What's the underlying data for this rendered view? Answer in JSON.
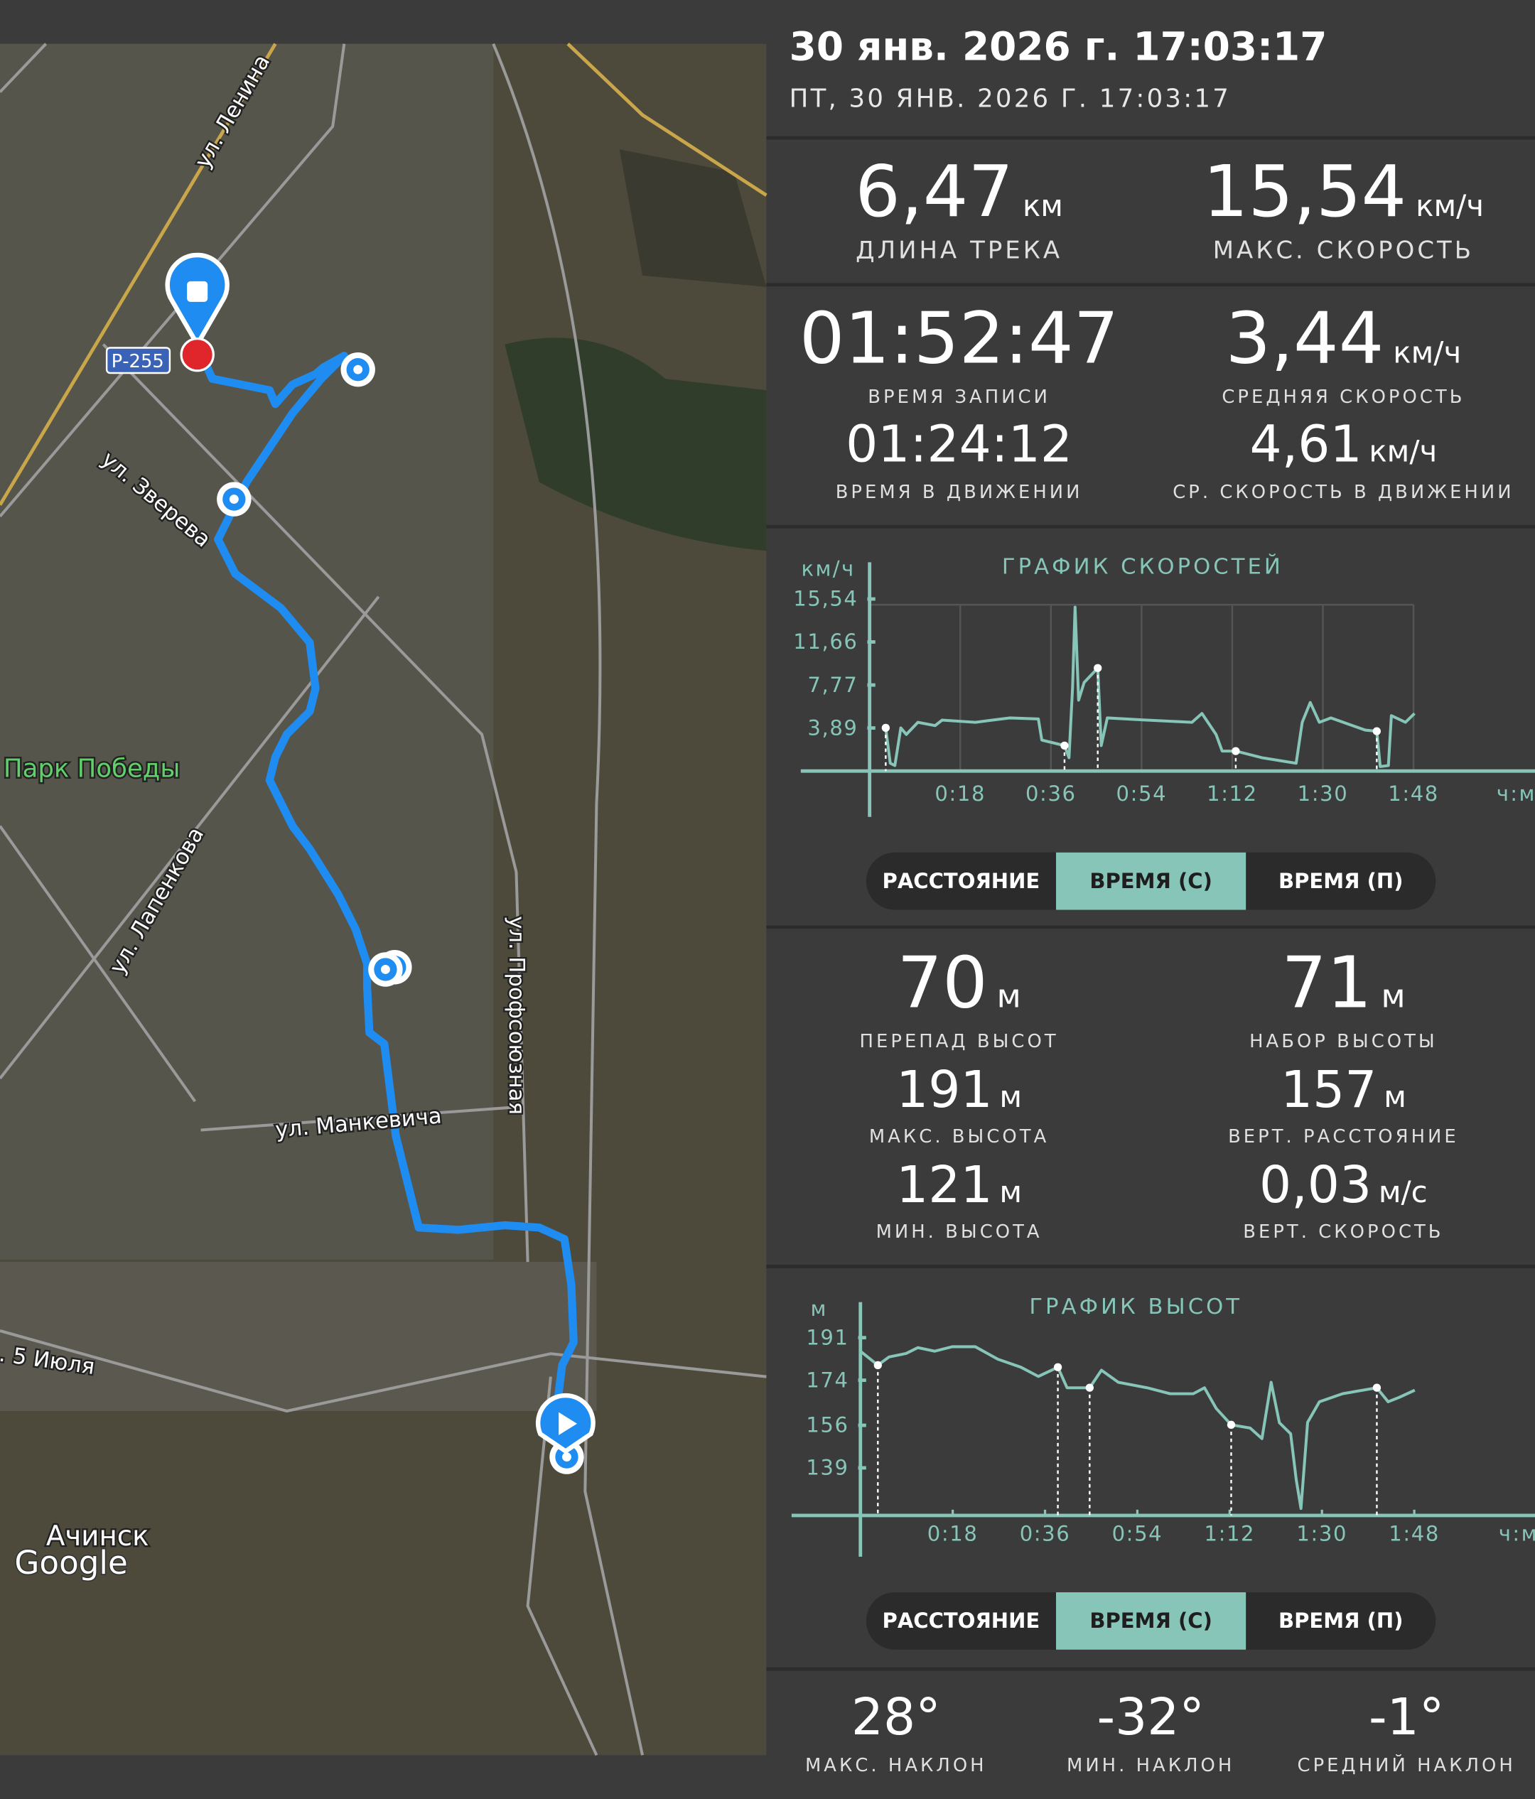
{
  "header": {
    "title": "30 янв. 2026 г. 17:03:17",
    "subtitle": "ПТ, 30 ЯНВ. 2026 Г. 17:03:17"
  },
  "map": {
    "labels": [
      "ул. Ленина",
      "Р-255",
      "ул. Зверева",
      "Парк Победы",
      "ул. Лапенкова",
      "ул. Профсоюзная",
      "ул. Манкевича",
      ". 5 Июля",
      "Ачинск",
      "Google"
    ]
  },
  "stats": {
    "track_length": {
      "value": "6,47",
      "unit": "км",
      "label": "ДЛИНА ТРЕКА"
    },
    "max_speed": {
      "value": "15,54",
      "unit": "км/ч",
      "label": "МАКС. СКОРОСТЬ"
    },
    "record_time": {
      "value": "01:52:47",
      "label": "ВРЕМЯ ЗАПИСИ"
    },
    "avg_speed": {
      "value": "3,44",
      "unit": "км/ч",
      "label": "СРЕДНЯЯ СКОРОСТЬ"
    },
    "moving_time": {
      "value": "01:24:12",
      "label": "ВРЕМЯ В ДВИЖЕНИИ"
    },
    "avg_moving_speed": {
      "value": "4,61",
      "unit": "км/ч",
      "label": "СР. СКОРОСТЬ В ДВИЖЕНИИ"
    }
  },
  "speed_chart": {
    "type": "line",
    "title": "ГРАФИК СКОРОСТЕЙ",
    "y_unit": "км/ч",
    "x_unit": "ч:м",
    "color": "#86c5b8",
    "grid": true,
    "x": [
      3.2,
      4.1,
      5,
      6.2,
      7.3,
      9.6,
      13,
      14.4,
      21,
      27.8,
      33.5,
      34.2,
      38.7,
      39.6,
      40.3,
      40.8,
      41.5,
      42.6,
      45.3,
      46,
      47.2,
      55,
      64,
      66,
      68.8,
      70,
      72.7,
      77.9,
      84.7,
      85.9,
      87.5,
      89.3,
      91.6,
      98.4,
      100.7,
      101.4,
      103,
      103.6,
      106.4,
      108.2
    ],
    "values": [
      3.9,
      0.7,
      0.5,
      3.9,
      3.3,
      4.4,
      4.1,
      4.6,
      4.4,
      4.8,
      4.7,
      2.8,
      2.3,
      1.2,
      7.5,
      14.8,
      6.4,
      8.0,
      9.3,
      2.3,
      4.8,
      4.6,
      4.4,
      5.2,
      3.3,
      1.8,
      1.8,
      1.2,
      0.7,
      4.4,
      6.2,
      4.4,
      4.8,
      3.7,
      3.6,
      0.4,
      0.5,
      5.0,
      4.4,
      5.2
    ],
    "markers": {
      "x": [
        3.2,
        38.7,
        45.3,
        72.7,
        100.7
      ],
      "values": [
        3.9,
        2.3,
        9.3,
        1.8,
        3.6
      ]
    },
    "xlim": [
      0,
      124
    ],
    "ylim": [
      0,
      15.54
    ],
    "yticks": [
      {
        "value": 3.89,
        "label": "3,89"
      },
      {
        "value": 7.77,
        "label": "7,77"
      },
      {
        "value": 11.66,
        "label": "11,66"
      },
      {
        "value": 15.54,
        "label": "15,54"
      }
    ],
    "xticks": [
      {
        "value": 18,
        "label": "0:18"
      },
      {
        "value": 36,
        "label": "0:36"
      },
      {
        "value": 54,
        "label": "0:54"
      },
      {
        "value": 72,
        "label": "1:12"
      },
      {
        "value": 90,
        "label": "1:30"
      },
      {
        "value": 108,
        "label": "1:48"
      }
    ]
  },
  "speed_tabs": {
    "options": [
      "РАССТОЯНИЕ",
      "ВРЕМЯ (С)",
      "ВРЕМЯ (П)"
    ],
    "selected": 1
  },
  "elevation_stats": {
    "elevation_diff": {
      "value": "70",
      "unit": "м",
      "label": "ПЕРЕПАД ВЫСОТ"
    },
    "elevation_gain": {
      "value": "71",
      "unit": "м",
      "label": "НАБОР ВЫСОТЫ"
    },
    "max_elevation": {
      "value": "191",
      "unit": "м",
      "label": "МАКС. ВЫСОТА"
    },
    "vertical_distance": {
      "value": "157",
      "unit": "м",
      "label": "ВЕРТ. РАССТОЯНИЕ"
    },
    "min_elevation": {
      "value": "121",
      "unit": "м",
      "label": "МИН. ВЫСОТА"
    },
    "vertical_speed": {
      "value": "0,03",
      "unit": "м/с",
      "label": "ВЕРТ. СКОРОСТЬ"
    }
  },
  "elevation_chart": {
    "type": "line",
    "title": "ГРАФИК ВЫСОТ",
    "y_unit": "м",
    "x_unit": "ч:м",
    "color": "#86c5b8",
    "grid": false,
    "x": [
      0,
      3.4,
      5.6,
      8.9,
      11.2,
      14.5,
      17.9,
      22.4,
      26.8,
      31.3,
      34.7,
      38.5,
      40.3,
      44.7,
      47,
      50.3,
      55.9,
      60.4,
      64.9,
      67.1,
      69.4,
      72.3,
      76,
      78.3,
      80.1,
      81.7,
      83.9,
      85,
      85.9,
      87.2,
      89.5,
      94,
      100.7,
      102.9,
      105.1,
      108.1
    ],
    "values": [
      185.6,
      180,
      183.3,
      184.7,
      187,
      185.6,
      187.4,
      187.4,
      182.4,
      179.2,
      175.5,
      179.2,
      171,
      171,
      178,
      173.2,
      171,
      168.6,
      168.6,
      171,
      162.7,
      156.2,
      154.9,
      150.7,
      173.2,
      157,
      152.6,
      134.2,
      122.8,
      157.2,
      165.4,
      168.6,
      171,
      165.4,
      167.2,
      170
    ],
    "markers": {
      "x": [
        3.4,
        38.5,
        44.7,
        72.3,
        100.7
      ],
      "values": [
        180,
        179.2,
        171,
        156.2,
        171
      ]
    },
    "xlim": [
      0,
      124
    ],
    "ylim": [
      120,
      191
    ],
    "yticks": [
      139,
      156,
      174,
      191
    ],
    "xticks": [
      {
        "value": 18,
        "label": "0:18"
      },
      {
        "value": 36,
        "label": "0:36"
      },
      {
        "value": 54,
        "label": "0:54"
      },
      {
        "value": 72,
        "label": "1:12"
      },
      {
        "value": 90,
        "label": "1:30"
      },
      {
        "value": 108,
        "label": "1:48"
      }
    ]
  },
  "elevation_tabs": {
    "options": [
      "РАССТОЯНИЕ",
      "ВРЕМЯ (С)",
      "ВРЕМЯ (П)"
    ],
    "selected": 1
  },
  "slope_stats": {
    "max_slope": {
      "value": "28°",
      "label": "МАКС. НАКЛОН"
    },
    "min_slope": {
      "value": "-32°",
      "label": "МИН. НАКЛОН"
    },
    "avg_slope": {
      "value": "-1°",
      "label": "СРЕДНИЙ НАКЛОН"
    }
  }
}
